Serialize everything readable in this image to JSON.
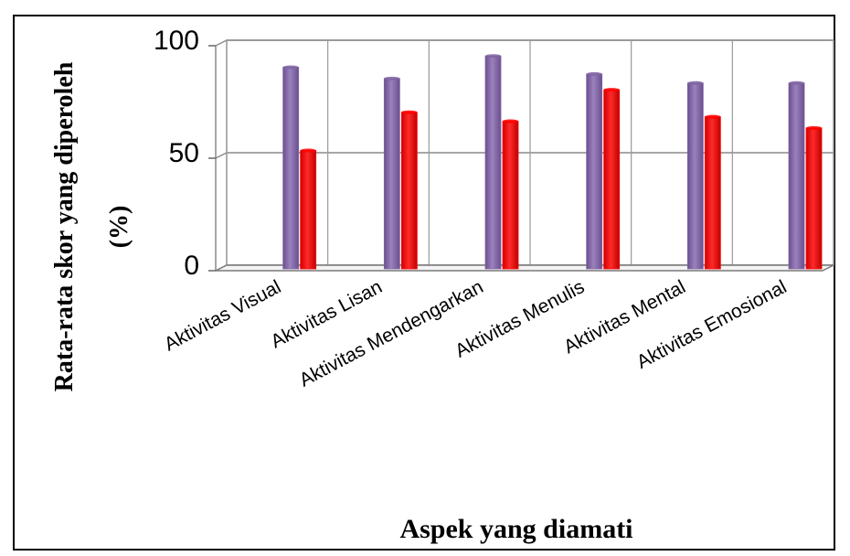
{
  "chart_data": {
    "type": "bar",
    "categories": [
      "Aktivitas Visual",
      "Aktivitas Lisan",
      "Aktivitas Mendengarkan",
      "Aktivitas Menulis",
      "Aktivitas Mental",
      "Aktivitas Emosional"
    ],
    "series": [
      {
        "values": [
          88,
          83,
          93,
          85,
          81,
          81
        ],
        "color": "#8064a2"
      },
      {
        "values": [
          51,
          68,
          64,
          78,
          66,
          61
        ],
        "color": "#ff0000"
      }
    ],
    "ylabel_line1": "Rata-rata skor yang diperoleh",
    "ylabel_line2": "(%)",
    "xlabel": "Aspek yang diamati",
    "ylim": [
      0,
      100
    ],
    "yticks": [
      0,
      50,
      100
    ],
    "grid": true,
    "legend": "none"
  }
}
